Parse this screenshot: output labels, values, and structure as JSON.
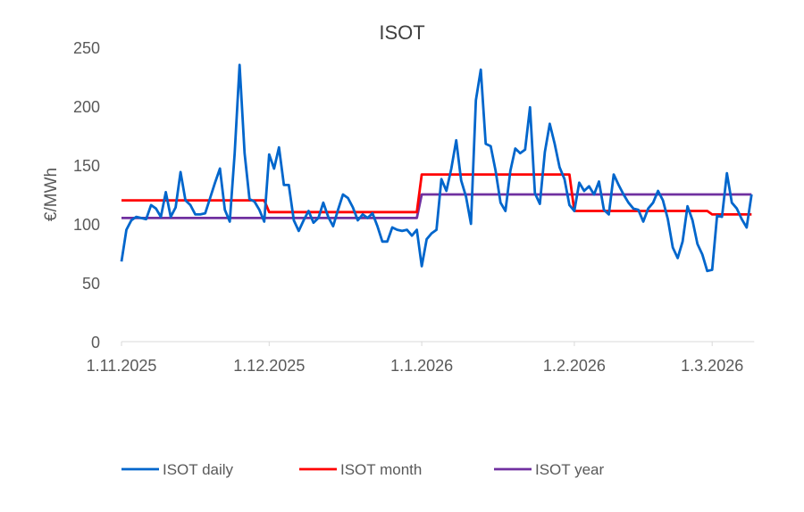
{
  "chart_data": {
    "type": "line",
    "title": "ISOT",
    "xlabel": "",
    "ylabel": "€/MWh",
    "ylim": [
      0,
      250
    ],
    "yticks": [
      0,
      50,
      100,
      150,
      200,
      250
    ],
    "xticks": [
      {
        "date": "2025-11-01",
        "label": "1.11.2025"
      },
      {
        "date": "2025-12-01",
        "label": "1.12.2025"
      },
      {
        "date": "2026-01-01",
        "label": "1.1.2026"
      },
      {
        "date": "2026-02-01",
        "label": "1.2.2026"
      },
      {
        "date": "2026-03-01",
        "label": "1.3.2026"
      }
    ],
    "grid": false,
    "legend_placement": "bottom",
    "series": [
      {
        "name": "ISOT daily",
        "color": "#0066CC",
        "daily_by_month": [
          {
            "month": "2025-11",
            "values": [
              68,
              95,
              103,
              106,
              105,
              104,
              116,
              113,
              106,
              127,
              106,
              114,
              144,
              120,
              116,
              108,
              108,
              109,
              122,
              135,
              147,
              112,
              102,
              160,
              235,
              160,
              121,
              119,
              112,
              102
            ]
          },
          {
            "month": "2025-12",
            "values": [
              159,
              147,
              165,
              133,
              133,
              103,
              94,
              103,
              111,
              101,
              105,
              118,
              106,
              98,
              112,
              125,
              122,
              114,
              103,
              108,
              105,
              109,
              98,
              85,
              85,
              97,
              95,
              94,
              95,
              90,
              95
            ]
          },
          {
            "month": "2026-01",
            "values": [
              64,
              87,
              92,
              95,
              138,
              128,
              147,
              171,
              137,
              123,
              100,
              205,
              231,
              168,
              166,
              145,
              118,
              111,
              145,
              164,
              160,
              163,
              199,
              126,
              117,
              161,
              185,
              168,
              148,
              138,
              116
            ]
          },
          {
            "month": "2026-02",
            "values": [
              111,
              135,
              128,
              132,
              125,
              136,
              112,
              108,
              142,
              133,
              125,
              118,
              113,
              112,
              102,
              113,
              118,
              128,
              120,
              104,
              80,
              71,
              85,
              115,
              103,
              83,
              74,
              60
            ]
          },
          {
            "month": "2026-03",
            "values": [
              61,
              107,
              106,
              143,
              118,
              113,
              104,
              97,
              125
            ]
          }
        ]
      },
      {
        "name": "ISOT month",
        "color": "#FF0000",
        "monthly": [
          {
            "month": "2025-11",
            "value": 120
          },
          {
            "month": "2025-12",
            "value": 110
          },
          {
            "month": "2026-01",
            "value": 142
          },
          {
            "month": "2026-02",
            "value": 111
          },
          {
            "month": "2026-03",
            "value": 108
          }
        ]
      },
      {
        "name": "ISOT year",
        "color": "#7030A0",
        "yearly": [
          {
            "year": "2025",
            "value": 105
          },
          {
            "year": "2026",
            "value": 125
          }
        ]
      }
    ]
  }
}
